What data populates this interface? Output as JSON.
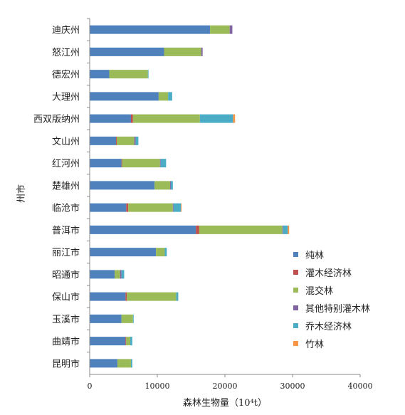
{
  "chart_data": {
    "type": "bar",
    "orientation": "horizontal",
    "stacked": true,
    "xlabel": "森林生物量（10⁴t）",
    "ylabel": "州市",
    "xlim": [
      0,
      40000
    ],
    "xticks": [
      "0",
      "10000",
      "20000",
      "30000",
      "40000"
    ],
    "grid": false,
    "legend_position": "right",
    "categories": [
      "迪庆州",
      "怒江州",
      "德宏州",
      "大理州",
      "西双版纳州",
      "文山州",
      "红河州",
      "楚雄州",
      "临沧市",
      "普洱市",
      "丽江市",
      "昭通市",
      "保山市",
      "玉溪市",
      "曲靖市",
      "昆明市"
    ],
    "series": [
      {
        "name": "纯林",
        "color": "#4f81bd",
        "values": [
          17800,
          11000,
          2900,
          10200,
          6100,
          3900,
          4700,
          9600,
          5400,
          15700,
          9800,
          3700,
          5300,
          4700,
          5300,
          4100
        ]
      },
      {
        "name": "灌木经济林",
        "color": "#c0504d",
        "values": [
          0,
          0,
          0,
          0,
          300,
          100,
          100,
          0,
          300,
          500,
          0,
          0,
          200,
          0,
          100,
          0
        ]
      },
      {
        "name": "混交林",
        "color": "#9bbb59",
        "values": [
          2900,
          5500,
          5700,
          1400,
          9900,
          2600,
          5600,
          2300,
          6600,
          12300,
          1300,
          800,
          7300,
          1700,
          600,
          2000
        ]
      },
      {
        "name": "其他特别灌木林",
        "color": "#8064a2",
        "values": [
          400,
          200,
          0,
          0,
          0,
          200,
          100,
          100,
          100,
          100,
          0,
          200,
          0,
          0,
          0,
          0
        ]
      },
      {
        "name": "乔木经济林",
        "color": "#4bacc6",
        "values": [
          0,
          0,
          100,
          600,
          4900,
          400,
          800,
          300,
          1100,
          700,
          300,
          400,
          300,
          100,
          300,
          200
        ]
      },
      {
        "name": "竹林",
        "color": "#f79646",
        "values": [
          0,
          0,
          0,
          0,
          300,
          0,
          0,
          0,
          100,
          200,
          0,
          0,
          0,
          0,
          0,
          0
        ]
      }
    ]
  }
}
